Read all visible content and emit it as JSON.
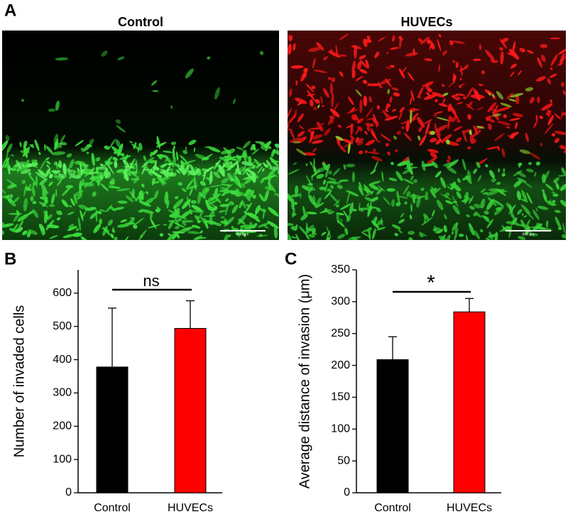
{
  "figure": {
    "panel_labels": [
      "A",
      "B",
      "C"
    ],
    "images": [
      {
        "title": "Control",
        "scale_bar": "500 μm"
      },
      {
        "title": "HUVECs",
        "scale_bar": "500 μm"
      }
    ]
  },
  "chart_data": [
    {
      "type": "bar",
      "ylabel": "Number of invaded cells",
      "categories": [
        "Control",
        "HUVECs"
      ],
      "values": [
        378,
        494
      ],
      "errors": [
        177,
        83
      ],
      "colors": [
        "#000000",
        "#ff0000"
      ],
      "ylim": [
        0,
        670
      ],
      "yticks": [
        0,
        100,
        200,
        300,
        400,
        500,
        600
      ],
      "annotation": "ns"
    },
    {
      "type": "bar",
      "ylabel": "Average distance of invasion (μm)",
      "categories": [
        "Control",
        "HUVECs"
      ],
      "values": [
        209,
        284
      ],
      "errors": [
        36,
        21
      ],
      "colors": [
        "#000000",
        "#ff0000"
      ],
      "ylim": [
        0,
        350
      ],
      "yticks": [
        0,
        50,
        100,
        150,
        200,
        250,
        300,
        350
      ],
      "annotation": "*"
    }
  ]
}
